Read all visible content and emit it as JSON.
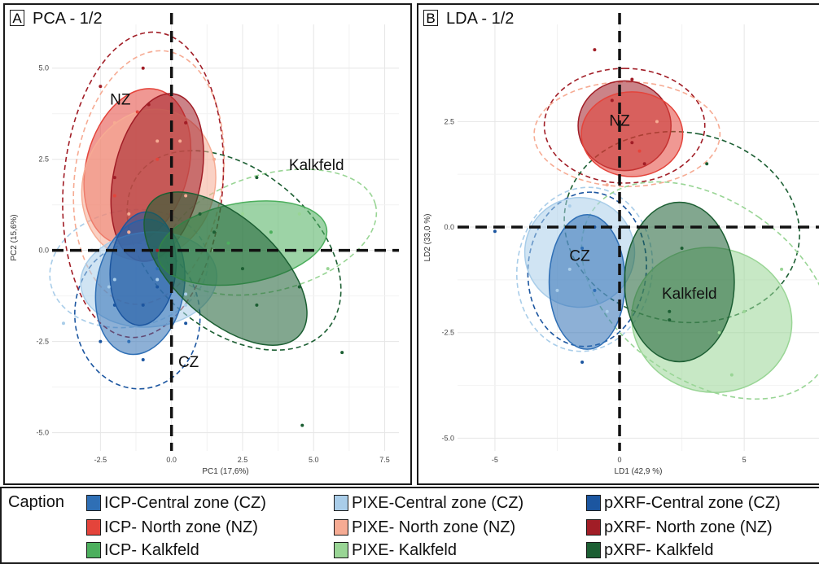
{
  "colors": {
    "icp_cz": "#2f6fb5",
    "icp_nz": "#e4443b",
    "icp_kalk": "#4caf5d",
    "pixe_cz": "#a9cde9",
    "pixe_nz": "#f6ab93",
    "pixe_kalk": "#99d595",
    "pxrf_cz": "#1c56a0",
    "pxrf_nz": "#a11d26",
    "pxrf_kalk": "#1c5f33"
  },
  "chart_data": [
    {
      "type": "scatter",
      "panel_letter": "A",
      "title": "PCA - 1/2",
      "xlabel": "PC1 (17,6%)",
      "ylabel": "PC2 (15,6%)",
      "xlim": [
        -4.2,
        8
      ],
      "ylim": [
        -5.5,
        6.2
      ],
      "xticks": [
        -2.5,
        0.0,
        2.5,
        5.0,
        7.5
      ],
      "xtick_labels": [
        "-2.5",
        "0.0",
        "2.5",
        "5.0",
        "7.5"
      ],
      "yticks": [
        -5.0,
        -2.5,
        0.0,
        2.5,
        5.0
      ],
      "ytick_labels": [
        "-5.0",
        "-2.5",
        "0.0",
        "2.5",
        "5.0"
      ],
      "grid": true,
      "group_labels": [
        {
          "text": "NZ",
          "x": -1.8,
          "y": 4.0
        },
        {
          "text": "Kalkfeld",
          "x": 5.1,
          "y": 2.2
        },
        {
          "text": "CZ",
          "x": 0.6,
          "y": -3.2
        }
      ],
      "series": [
        {
          "color_key": "pixe_cz",
          "style": "dash",
          "ellipse": {
            "cx": -1.5,
            "cy": -0.5,
            "rx": 2.8,
            "ry": 1.6,
            "angle": 10
          },
          "points": [
            [
              -3.8,
              -2.0
            ],
            [
              -2.2,
              -1.0
            ],
            [
              -1.5,
              0.5
            ],
            [
              -0.5,
              -0.8
            ],
            [
              0.5,
              -1.5
            ],
            [
              -2.8,
              0.0
            ]
          ]
        },
        {
          "color_key": "pixe_nz",
          "style": "dash",
          "ellipse": {
            "cx": -0.8,
            "cy": 2.0,
            "rx": 2.6,
            "ry": 3.5,
            "angle": -8
          },
          "points": [
            [
              -2.0,
              3.5
            ],
            [
              -0.5,
              3.0
            ],
            [
              0.5,
              1.5
            ],
            [
              1.5,
              2.5
            ],
            [
              -1.5,
              1.0
            ]
          ]
        },
        {
          "color_key": "pixe_kalk",
          "style": "dash",
          "ellipse": {
            "cx": 3.5,
            "cy": 0.5,
            "rx": 3.8,
            "ry": 1.6,
            "angle": 15
          },
          "points": [
            [
              2.5,
              1.0
            ],
            [
              3.5,
              0.5
            ],
            [
              4.5,
              1.0
            ],
            [
              5.5,
              -0.5
            ],
            [
              1.5,
              0.0
            ]
          ]
        },
        {
          "color_key": "pxrf_cz",
          "style": "dash",
          "ellipse": {
            "cx": -1.2,
            "cy": -1.8,
            "rx": 2.2,
            "ry": 2.0,
            "angle": 5
          },
          "points": [
            [
              -2.5,
              -2.5
            ],
            [
              -1.0,
              -3.0
            ],
            [
              -0.5,
              -1.0
            ],
            [
              0.5,
              -2.0
            ],
            [
              -2.0,
              -1.5
            ]
          ]
        },
        {
          "color_key": "pxrf_nz",
          "style": "dash",
          "ellipse": {
            "cx": -1.0,
            "cy": 1.8,
            "rx": 2.8,
            "ry": 4.2,
            "angle": -5
          },
          "points": [
            [
              -2.5,
              4.5
            ],
            [
              -1.0,
              5.0
            ],
            [
              0.5,
              3.5
            ],
            [
              -0.5,
              0.0
            ],
            [
              -2.0,
              2.0
            ]
          ]
        },
        {
          "color_key": "pxrf_kalk",
          "style": "dash",
          "ellipse": {
            "cx": 2.2,
            "cy": 0.0,
            "rx": 4.3,
            "ry": 2.2,
            "angle": -40
          },
          "points": [
            [
              3.0,
              2.0
            ],
            [
              4.5,
              -1.0
            ],
            [
              6.0,
              -2.8
            ],
            [
              4.6,
              -4.8
            ],
            [
              1.0,
              1.0
            ],
            [
              2.5,
              -0.5
            ]
          ]
        },
        {
          "color_key": "icp_nz",
          "style": "filled",
          "ellipse": {
            "cx": -1.2,
            "cy": 2.3,
            "rx": 2.8,
            "ry": 1.4,
            "angle": 75
          },
          "points": [
            [
              -1.2,
              3.8
            ],
            [
              -0.5,
              2.5
            ],
            [
              -2.0,
              1.5
            ]
          ]
        },
        {
          "color_key": "pixe_nz",
          "style": "filled",
          "ellipse": {
            "cx": -0.8,
            "cy": 1.8,
            "rx": 2.7,
            "ry": 1.8,
            "angle": 70
          },
          "points": [
            [
              0.3,
              3.0
            ],
            [
              -1.5,
              0.5
            ]
          ]
        },
        {
          "color_key": "pxrf_nz",
          "style": "filled",
          "ellipse": {
            "cx": -0.5,
            "cy": 2.0,
            "rx": 3.0,
            "ry": 1.2,
            "angle": 78
          },
          "points": [
            [
              -0.8,
              4.0
            ],
            [
              0.0,
              1.0
            ]
          ]
        },
        {
          "color_key": "pixe_cz",
          "style": "filled",
          "ellipse": {
            "cx": -0.8,
            "cy": -0.8,
            "rx": 2.4,
            "ry": 1.3,
            "angle": 5
          },
          "points": [
            [
              -2.0,
              -0.8
            ],
            [
              0.5,
              -1.2
            ]
          ]
        },
        {
          "color_key": "icp_cz",
          "style": "filled",
          "ellipse": {
            "cx": -1.1,
            "cy": -1.0,
            "rx": 2.4,
            "ry": 1.2,
            "angle": 80
          },
          "points": [
            [
              -1.5,
              -2.5
            ],
            [
              -0.5,
              -0.5
            ]
          ]
        },
        {
          "color_key": "pxrf_cz",
          "style": "filled",
          "ellipse": {
            "cx": -1.0,
            "cy": -0.5,
            "rx": 2.0,
            "ry": 0.9,
            "angle": 85
          },
          "points": [
            [
              -1.0,
              -1.5
            ]
          ]
        },
        {
          "color_key": "icp_kalk",
          "style": "filled",
          "ellipse": {
            "cx": 2.5,
            "cy": 0.2,
            "rx": 3.0,
            "ry": 1.1,
            "angle": 10
          },
          "points": [
            [
              2.0,
              0.2
            ],
            [
              3.5,
              0.5
            ]
          ]
        },
        {
          "color_key": "pxrf_kalk",
          "style": "filled",
          "ellipse": {
            "cx": 1.9,
            "cy": -0.5,
            "rx": 3.5,
            "ry": 1.4,
            "angle": -42
          },
          "points": [
            [
              1.5,
              0.5
            ],
            [
              3.0,
              -1.5
            ]
          ]
        }
      ]
    },
    {
      "type": "scatter",
      "panel_letter": "B",
      "title": "LDA - 1/2",
      "xlabel": "LD1 (42,9 %)",
      "ylabel": "LD2 (33,0 %)",
      "xlim": [
        -6.5,
        8
      ],
      "ylim": [
        -5.3,
        4.8
      ],
      "xticks": [
        -5,
        0,
        5
      ],
      "xtick_labels": [
        "-5",
        "0",
        "5"
      ],
      "yticks": [
        -5.0,
        -2.5,
        0.0,
        2.5
      ],
      "ytick_labels": [
        "-5.0",
        "-2.5",
        "0.0",
        "2.5"
      ],
      "grid": true,
      "group_labels": [
        {
          "text": "NZ",
          "x": 0.0,
          "y": 2.4
        },
        {
          "text": "CZ",
          "x": -1.6,
          "y": -0.8
        },
        {
          "text": "Kalkfeld",
          "x": 2.8,
          "y": -1.7
        }
      ],
      "series": [
        {
          "color_key": "pixe_cz",
          "style": "dash",
          "ellipse": {
            "cx": -1.4,
            "cy": -1.0,
            "rx": 3.3,
            "ry": 1.6,
            "angle": 82
          },
          "points": [
            [
              -2.5,
              -1.5
            ],
            [
              -0.5,
              -2.0
            ],
            [
              -2.0,
              0.5
            ]
          ]
        },
        {
          "color_key": "pxrf_cz",
          "style": "dash",
          "ellipse": {
            "cx": -1.3,
            "cy": -1.0,
            "rx": 3.1,
            "ry": 1.4,
            "angle": 85
          },
          "points": [
            [
              -1.5,
              -3.2
            ],
            [
              -1.0,
              0.0
            ],
            [
              -5.0,
              -0.1
            ]
          ]
        },
        {
          "color_key": "pxrf_nz",
          "style": "dash",
          "ellipse": {
            "cx": 0.2,
            "cy": 2.4,
            "rx": 2.3,
            "ry": 1.9,
            "angle": 90
          },
          "points": [
            [
              -1.0,
              4.2
            ],
            [
              0.5,
              3.5
            ],
            [
              1.0,
              1.5
            ]
          ]
        },
        {
          "color_key": "pixe_nz",
          "style": "dash",
          "ellipse": {
            "cx": 0.3,
            "cy": 2.2,
            "rx": 2.1,
            "ry": 2.2,
            "angle": 90
          },
          "points": [
            [
              1.5,
              2.5
            ],
            [
              -0.5,
              1.0
            ]
          ]
        },
        {
          "color_key": "pxrf_kalk",
          "style": "dash",
          "ellipse": {
            "cx": 2.5,
            "cy": 0.0,
            "rx": 3.8,
            "ry": 2.8,
            "angle": 80
          },
          "points": [
            [
              3.5,
              1.5
            ],
            [
              2.0,
              -2.0
            ],
            [
              4.0,
              -2.5
            ]
          ]
        },
        {
          "color_key": "pixe_kalk",
          "style": "dash",
          "ellipse": {
            "cx": 3.5,
            "cy": -1.5,
            "rx": 3.6,
            "ry": 3.3,
            "angle": 55
          },
          "points": [
            [
              5.0,
              -2.0
            ],
            [
              4.5,
              -3.5
            ],
            [
              6.5,
              -1.0
            ]
          ]
        },
        {
          "color_key": "pxrf_nz",
          "style": "filled",
          "ellipse": {
            "cx": 0.2,
            "cy": 2.4,
            "rx": 1.8,
            "ry": 1.1,
            "angle": 90
          },
          "points": [
            [
              -0.3,
              3.0
            ],
            [
              0.5,
              2.0
            ]
          ]
        },
        {
          "color_key": "icp_nz",
          "style": "filled",
          "ellipse": {
            "cx": 0.5,
            "cy": 2.2,
            "rx": 1.7,
            "ry": 1.2,
            "angle": 90
          },
          "points": [
            [
              0.8,
              1.8
            ]
          ]
        },
        {
          "color_key": "pixe_cz",
          "style": "filled",
          "ellipse": {
            "cx": -1.6,
            "cy": -0.6,
            "rx": 2.2,
            "ry": 1.3,
            "angle": 85
          },
          "points": [
            [
              -2.0,
              -1.0
            ]
          ]
        },
        {
          "color_key": "icp_cz",
          "style": "filled",
          "ellipse": {
            "cx": -1.3,
            "cy": -1.3,
            "rx": 2.7,
            "ry": 0.9,
            "angle": 90
          },
          "points": [
            [
              -1.0,
              -1.5
            ],
            [
              -1.5,
              -0.5
            ]
          ]
        },
        {
          "color_key": "pixe_kalk",
          "style": "filled",
          "ellipse": {
            "cx": 3.7,
            "cy": -2.2,
            "rx": 2.9,
            "ry": 1.9,
            "angle": 80
          },
          "points": [
            [
              4.0,
              -2.5
            ],
            [
              3.0,
              -1.5
            ]
          ]
        },
        {
          "color_key": "pxrf_kalk",
          "style": "filled",
          "ellipse": {
            "cx": 2.4,
            "cy": -1.3,
            "rx": 3.2,
            "ry": 1.3,
            "angle": 90
          },
          "points": [
            [
              2.5,
              -0.5
            ],
            [
              2.0,
              -2.2
            ]
          ]
        }
      ]
    }
  ],
  "legend": {
    "caption": "Caption",
    "items": [
      {
        "label": "ICP-Central zone (CZ)",
        "color_key": "icp_cz"
      },
      {
        "label": "ICP- North zone (NZ)",
        "color_key": "icp_nz"
      },
      {
        "label": "ICP- Kalkfeld",
        "color_key": "icp_kalk"
      },
      {
        "label": "PIXE-Central zone (CZ)",
        "color_key": "pixe_cz"
      },
      {
        "label": "PIXE- North zone (NZ)",
        "color_key": "pixe_nz"
      },
      {
        "label": "PIXE- Kalkfeld",
        "color_key": "pixe_kalk"
      },
      {
        "label": "pXRF-Central zone (CZ)",
        "color_key": "pxrf_cz"
      },
      {
        "label": "pXRF- North zone (NZ)",
        "color_key": "pxrf_nz"
      },
      {
        "label": "pXRF- Kalkfeld",
        "color_key": "pxrf_kalk"
      }
    ]
  }
}
